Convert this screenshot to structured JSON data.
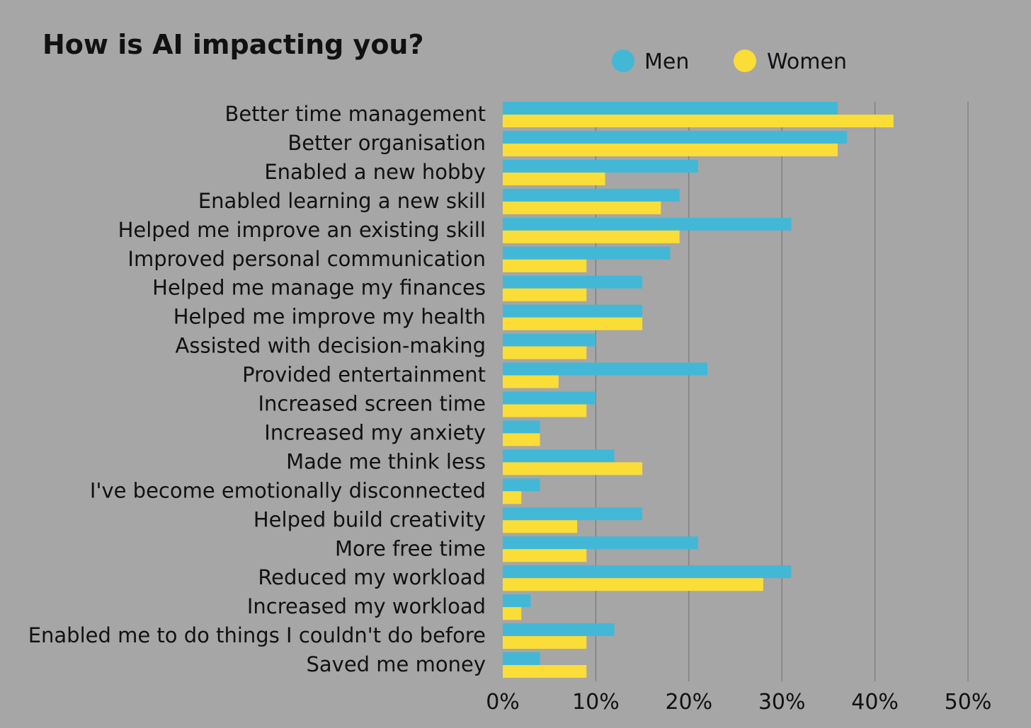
{
  "chart_data": {
    "type": "bar",
    "orientation": "horizontal",
    "title": "How is AI impacting you?",
    "xlabel": "",
    "ylabel": "",
    "xlim": [
      0,
      50
    ],
    "ticks": [
      0,
      10,
      20,
      30,
      40,
      50
    ],
    "tick_labels": [
      "0%",
      "10%",
      "20%",
      "30%",
      "40%",
      "50%"
    ],
    "grid": true,
    "legend_position": "top-right",
    "categories": [
      "Better time management",
      "Better organisation",
      "Enabled a new hobby",
      "Enabled learning a new skill",
      "Helped me improve an existing skill",
      "Improved personal communication",
      "Helped me manage my finances",
      "Helped me improve my health",
      "Assisted with decision-making",
      "Provided entertainment",
      "Increased screen time",
      "Increased my anxiety",
      "Made me think less",
      "I've become emotionally disconnected",
      "Helped build creativity",
      "More free time",
      "Reduced my workload",
      "Increased my workload",
      "Enabled me to do things I couldn't do before",
      "Saved me money"
    ],
    "series": [
      {
        "name": "Men",
        "color": "#42b8d6",
        "values": [
          36,
          37,
          21,
          19,
          31,
          18,
          15,
          15,
          10,
          22,
          10,
          4,
          12,
          4,
          15,
          21,
          31,
          3,
          12,
          4
        ]
      },
      {
        "name": "Women",
        "color": "#fadd37",
        "values": [
          42,
          36,
          11,
          17,
          19,
          9,
          9,
          15,
          9,
          6,
          9,
          4,
          15,
          2,
          8,
          9,
          28,
          2,
          9,
          9
        ]
      }
    ]
  }
}
